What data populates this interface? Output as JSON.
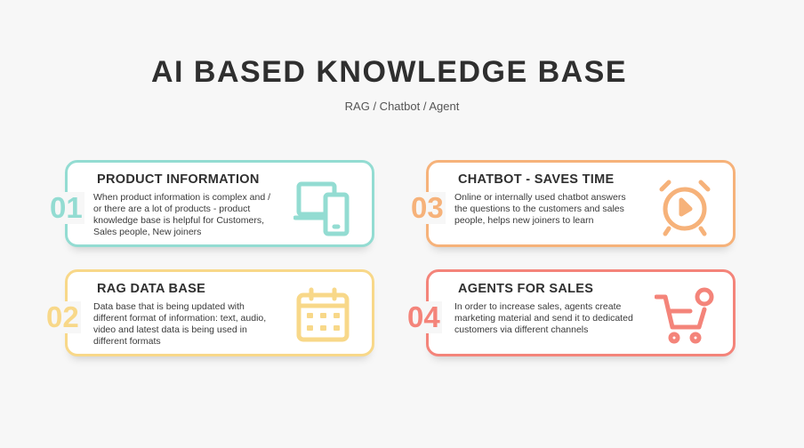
{
  "title": "AI BASED KNOWLEDGE BASE",
  "subtitle": "RAG / Chatbot / Agent",
  "cards": [
    {
      "number": "01",
      "heading": "PRODUCT INFORMATION",
      "description": "When product information is complex and / or there are a lot of products - product knowledge base is helpful for Customers, Sales people, New joiners",
      "icon": "devices-icon",
      "color": "#93dcd2"
    },
    {
      "number": "02",
      "heading": "RAG DATA BASE",
      "description": "Data base that is being updated with different format of information: text, audio, video and latest data is being used in different formats",
      "icon": "calendar-icon",
      "color": "#f8d889"
    },
    {
      "number": "03",
      "heading": "CHATBOT - SAVES TIME",
      "description": "Online or internally used chatbot answers the questions to the customers and sales people, helps new joiners to learn",
      "icon": "alarm-clock-icon",
      "color": "#f6b27a"
    },
    {
      "number": "04",
      "heading": "AGENTS FOR SALES",
      "description": "In order to increase sales, agents create marketing material and send it to dedicated customers via different channels",
      "icon": "cart-icon",
      "color": "#f4847a"
    }
  ]
}
